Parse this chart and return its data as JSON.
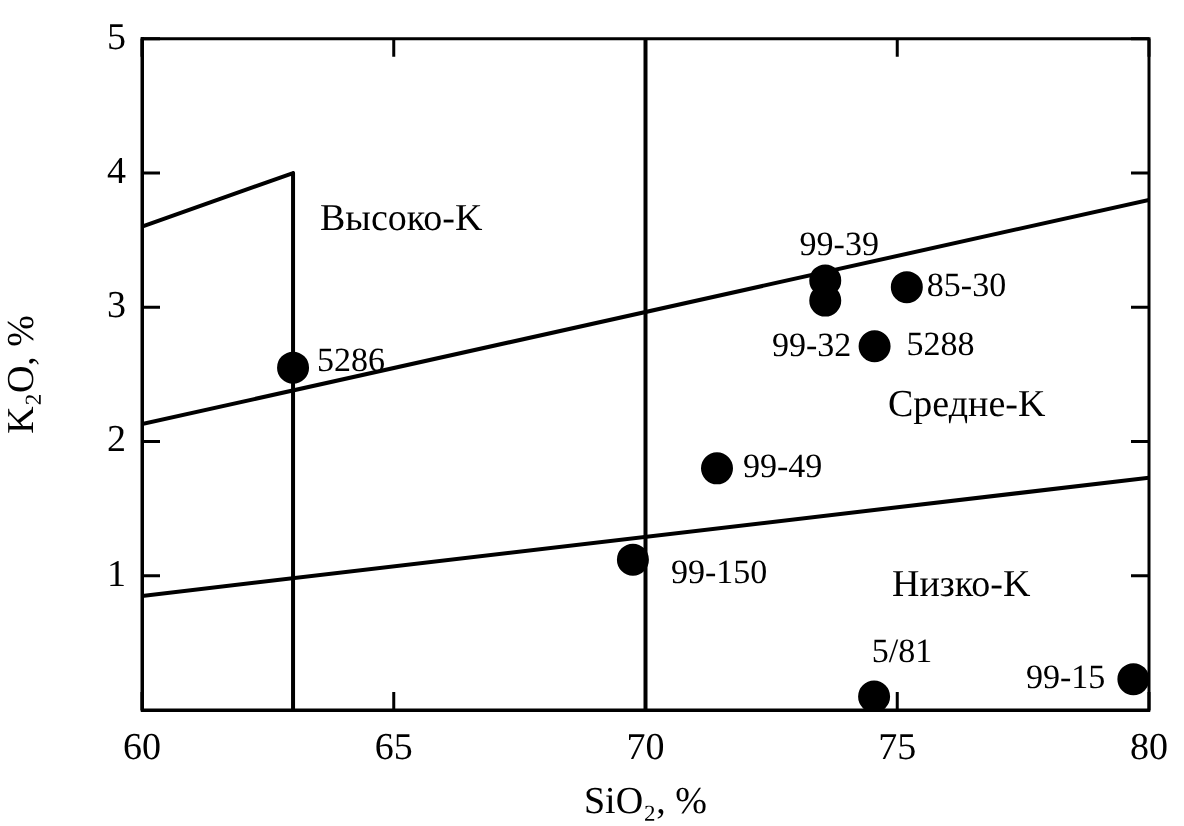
{
  "chart_data": {
    "type": "scatter",
    "xlabel": "SiO₂, %",
    "ylabel": "K₂O, %",
    "xlim": [
      60,
      80
    ],
    "ylim": [
      0,
      5
    ],
    "xticks": [
      60,
      65,
      70,
      75,
      80
    ],
    "yticks": [
      1,
      2,
      3,
      4,
      5
    ],
    "grid": false,
    "legend": false,
    "series": [
      {
        "color": "#000000",
        "marker": "circle",
        "x": [
          63.0,
          73.57,
          73.57,
          75.19,
          74.55,
          71.42,
          69.75,
          74.54,
          79.69
        ],
        "values": [
          2.55,
          3.2,
          3.05,
          3.15,
          2.71,
          1.8,
          1.12,
          0.1,
          0.23
        ]
      },
      {
        "type": "line",
        "marker": "none",
        "color": "#000000",
        "x": [
          60,
          63,
          63
        ],
        "values": [
          3.6,
          4.0,
          0
        ]
      },
      {
        "type": "line",
        "marker": "none",
        "color": "#000000",
        "x": [
          60,
          80
        ],
        "values": [
          2.13,
          3.8
        ]
      },
      {
        "type": "line",
        "marker": "none",
        "color": "#000000",
        "x": [
          60,
          80
        ],
        "values": [
          0.85,
          1.73
        ]
      }
    ],
    "ref_lines": [
      {
        "axis": "x",
        "value": 70,
        "color": "#000000"
      }
    ],
    "annotations": [
      {
        "text": "5286",
        "x": 63.0,
        "y": 2.55
      },
      {
        "text": "99-39",
        "x": 73.57,
        "y": 3.2
      },
      {
        "text": "99-32",
        "x": 73.57,
        "y": 3.05
      },
      {
        "text": "85-30",
        "x": 75.19,
        "y": 3.15
      },
      {
        "text": "5288",
        "x": 74.55,
        "y": 2.71
      },
      {
        "text": "99-49",
        "x": 71.42,
        "y": 1.8
      },
      {
        "text": "99-150",
        "x": 69.75,
        "y": 1.12
      },
      {
        "text": "5/81",
        "x": 74.54,
        "y": 0.1
      },
      {
        "text": "99-15",
        "x": 79.69,
        "y": 0.23
      },
      "Высоко-K",
      "Средне-K",
      "Низко-K"
    ]
  }
}
